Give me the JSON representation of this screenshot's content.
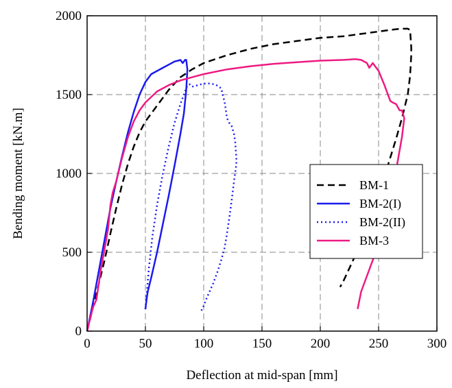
{
  "chart_data": {
    "type": "line",
    "title": "",
    "xlabel": "Deflection at mid-span [mm]",
    "ylabel": "Bending moment [kN.m]",
    "xlim": [
      0,
      300
    ],
    "ylim": [
      0,
      2000
    ],
    "xticks": [
      "0",
      "50",
      "100",
      "150",
      "200",
      "250",
      "300"
    ],
    "yticks": [
      "0",
      "500",
      "1000",
      "1500",
      "2000"
    ],
    "grid": true,
    "legend_position": "right",
    "series": [
      {
        "name": "BM-1",
        "color": "#000000",
        "style": "dashed",
        "x": [
          0,
          5,
          10,
          15,
          20,
          25,
          30,
          35,
          40,
          45,
          50,
          55,
          60,
          70,
          80,
          90,
          100,
          120,
          140,
          160,
          180,
          200,
          220,
          240,
          250,
          260,
          265,
          270,
          275,
          277,
          278,
          278,
          277,
          275,
          270,
          265,
          260,
          255,
          250,
          245,
          240,
          235,
          230,
          225,
          220,
          217
        ],
        "y": [
          0,
          150,
          300,
          450,
          620,
          780,
          930,
          1060,
          1170,
          1260,
          1330,
          1380,
          1430,
          1530,
          1610,
          1660,
          1700,
          1750,
          1790,
          1820,
          1840,
          1860,
          1870,
          1890,
          1900,
          1910,
          1915,
          1918,
          1918,
          1910,
          1800,
          1750,
          1620,
          1500,
          1350,
          1220,
          1100,
          980,
          850,
          740,
          640,
          560,
          480,
          400,
          320,
          280
        ]
      },
      {
        "name": "BM-2(I)",
        "color": "#1a1aee",
        "style": "solid",
        "x": [
          0,
          5,
          10,
          15,
          20,
          25,
          30,
          35,
          40,
          45,
          50,
          55,
          60,
          65,
          70,
          75,
          78,
          80,
          82,
          84,
          85,
          86,
          85,
          83,
          80,
          75,
          70,
          65,
          60,
          55,
          52,
          51,
          50
        ],
        "y": [
          0,
          180,
          380,
          580,
          780,
          950,
          1110,
          1260,
          1390,
          1500,
          1580,
          1630,
          1650,
          1670,
          1690,
          1710,
          1715,
          1720,
          1700,
          1720,
          1720,
          1660,
          1530,
          1380,
          1250,
          1050,
          860,
          680,
          500,
          340,
          250,
          200,
          140
        ]
      },
      {
        "name": "BM-2(II)",
        "color": "#1a1aee",
        "style": "dotted",
        "x": [
          50,
          53,
          56,
          60,
          65,
          70,
          75,
          80,
          84,
          86,
          88,
          90,
          95,
          100,
          105,
          110,
          115,
          118,
          120,
          122,
          124,
          126,
          127,
          128,
          128,
          126,
          124,
          122,
          120,
          118,
          115,
          112,
          108,
          105,
          102,
          100,
          98
        ],
        "y": [
          140,
          400,
          600,
          800,
          1000,
          1170,
          1320,
          1440,
          1520,
          1560,
          1565,
          1550,
          1560,
          1570,
          1570,
          1565,
          1540,
          1450,
          1350,
          1320,
          1300,
          1250,
          1200,
          1100,
          1060,
          950,
          830,
          720,
          620,
          530,
          450,
          380,
          300,
          250,
          200,
          160,
          130
        ]
      },
      {
        "name": "BM-3",
        "color": "#ee1a82",
        "style": "solid",
        "x": [
          0,
          5,
          8,
          10,
          12,
          15,
          18,
          20,
          22,
          25,
          30,
          35,
          40,
          45,
          50,
          60,
          70,
          80,
          90,
          100,
          120,
          140,
          160,
          180,
          200,
          220,
          230,
          235,
          240,
          242,
          245,
          250,
          255,
          260,
          262,
          265,
          268,
          270,
          272,
          270,
          265,
          260,
          255,
          250,
          245,
          240,
          235,
          232
        ],
        "y": [
          0,
          150,
          200,
          300,
          400,
          520,
          650,
          800,
          880,
          950,
          1100,
          1230,
          1330,
          1400,
          1450,
          1520,
          1560,
          1590,
          1610,
          1630,
          1660,
          1680,
          1695,
          1705,
          1715,
          1720,
          1725,
          1720,
          1700,
          1670,
          1700,
          1650,
          1560,
          1460,
          1450,
          1440,
          1400,
          1400,
          1350,
          1230,
          1020,
          840,
          690,
          560,
          450,
          350,
          250,
          140
        ]
      }
    ]
  }
}
